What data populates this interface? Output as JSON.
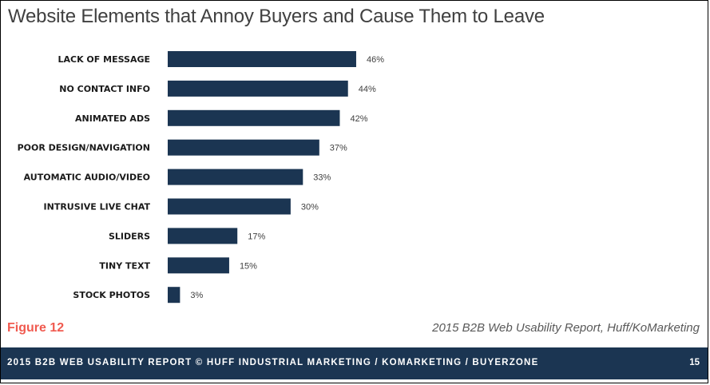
{
  "header": {
    "title": "Website Elements that Annoy Buyers and Cause Them to Leave"
  },
  "chart_data": {
    "type": "bar",
    "orientation": "horizontal",
    "title": "Website Elements that Annoy Buyers and Cause Them to Leave",
    "categories": [
      "LACK OF MESSAGE",
      "NO CONTACT INFO",
      "ANIMATED ADS",
      "POOR DESIGN/NAVIGATION",
      "AUTOMATIC AUDIO/VIDEO",
      "INTRUSIVE LIVE CHAT",
      "SLIDERS",
      "TINY TEXT",
      "STOCK PHOTOS"
    ],
    "values": [
      46,
      44,
      42,
      37,
      33,
      30,
      17,
      15,
      3
    ],
    "value_labels": [
      "46%",
      "44%",
      "42%",
      "37%",
      "33%",
      "30%",
      "17%",
      "15%",
      "3%"
    ],
    "unit": "%",
    "bar_color": "#1b3552",
    "grid": false,
    "legend": "none"
  },
  "figure_label": "Figure 12",
  "source_note": "2015 B2B Web Usability Report, Huff/KoMarketing",
  "footer": {
    "text": "2015 B2B WEB USABILITY REPORT © HUFF INDUSTRIAL MARKETING / KOMARKETING / BUYERZONE",
    "page_number": "15"
  },
  "colors": {
    "bar": "#1b3552",
    "footer_bg": "#1b3552",
    "figure_label": "#f05a4f",
    "title": "#404040"
  }
}
